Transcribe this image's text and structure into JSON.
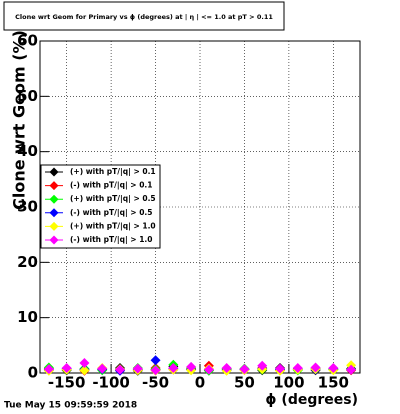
{
  "chart_data": {
    "type": "scatter",
    "title": "Clone wrt Geom for Primary vs ϕ (degrees) at | η | <= 1.0 at pT > 0.11",
    "x_label": "ϕ (degrees)",
    "y_label": "Clone wrt Geom (%)",
    "x": [
      -170,
      -150,
      -130,
      -110,
      -90,
      -70,
      -50,
      -30,
      -10,
      10,
      30,
      50,
      70,
      90,
      110,
      130,
      150,
      170
    ],
    "series": [
      {
        "name": "(+) with pT/|q| > 0.1",
        "color": "#000000",
        "values": [
          0.8,
          0.5,
          0.7,
          0.6,
          0.9,
          0.4,
          0.6,
          1.2,
          0.7,
          0.5,
          0.8,
          0.6,
          0.5,
          0.9,
          0.7,
          0.5,
          0.6,
          0.8
        ]
      },
      {
        "name": "(-) with pT/|q| > 0.1",
        "color": "#ff0000",
        "values": [
          0.6,
          0.7,
          0.4,
          0.8,
          0.5,
          0.7,
          0.9,
          0.6,
          0.8,
          1.3,
          0.6,
          0.7,
          0.9,
          0.5,
          0.6,
          0.8,
          0.7,
          0.5
        ]
      },
      {
        "name": "(+) with pT/|q| > 0.5",
        "color": "#00ff00",
        "values": [
          1.0,
          0.6,
          0.8,
          0.5,
          0.6,
          0.9,
          0.7,
          1.5,
          0.9,
          0.4,
          0.7,
          0.8,
          0.6,
          0.7,
          0.5,
          0.9,
          0.6,
          0.7
        ]
      },
      {
        "name": "(-) with pT/|q| > 0.5",
        "color": "#0000ff",
        "values": [
          0.5,
          0.8,
          0.6,
          0.7,
          0.4,
          0.6,
          2.3,
          0.8,
          0.6,
          0.7,
          0.5,
          0.6,
          0.8,
          0.6,
          0.7,
          0.6,
          0.8,
          0.6
        ]
      },
      {
        "name": "(+) with pT/|q| > 1.0",
        "color": "#ffff00",
        "values": [
          0.4,
          0.6,
          0.5,
          0.9,
          0.7,
          0.5,
          0.4,
          0.6,
          0.5,
          0.8,
          0.4,
          0.5,
          0.7,
          0.4,
          0.6,
          0.7,
          0.5,
          1.4
        ]
      },
      {
        "name": "(-) with pT/|q| > 1.0",
        "color": "#ff00ff",
        "values": [
          0.7,
          0.9,
          1.8,
          0.8,
          0.6,
          0.8,
          0.5,
          0.9,
          1.1,
          0.6,
          0.9,
          0.7,
          1.3,
          0.8,
          0.9,
          1.0,
          0.9,
          0.6
        ]
      }
    ],
    "xlim": [
      -180,
      180
    ],
    "xticks": [
      -150,
      -100,
      -50,
      0,
      50,
      100,
      150
    ],
    "ylim": [
      0,
      60
    ],
    "yticks": [
      0,
      10,
      20,
      30,
      40,
      50,
      60
    ],
    "grid": true
  },
  "timestamp": "Tue May 15 09:59:59 2018"
}
